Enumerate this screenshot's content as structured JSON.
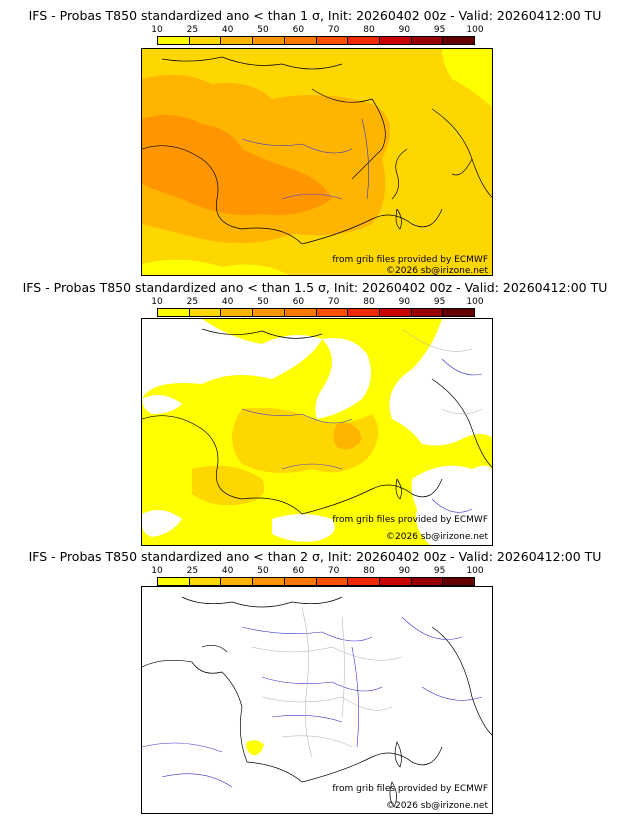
{
  "legend": {
    "ticks": [
      "10",
      "25",
      "40",
      "50",
      "60",
      "70",
      "80",
      "90",
      "95",
      "100"
    ],
    "colors": [
      "#ffff00",
      "#ffd700",
      "#ffb400",
      "#ff9600",
      "#ff7800",
      "#ff5000",
      "#f02800",
      "#c80000",
      "#960000",
      "#640000"
    ]
  },
  "panels": [
    {
      "title": "IFS - Probas T850  standardized ano < than 1 σ, Init: 20260402 00z - Valid: 20260412:00 TU",
      "source": "from grib files provided by ECMWF",
      "copyright": "©2026 sb@irizone.net",
      "fill": "high"
    },
    {
      "title": "IFS - Probas T850  standardized ano < than 1.5 σ, Init: 20260402 00z - Valid: 20260412:00 TU",
      "source": "from grib files provided by ECMWF",
      "copyright": "©2026 sb@irizone.net",
      "fill": "mid"
    },
    {
      "title": "IFS - Probas T850  standardized ano < than 2 σ, Init: 20260402 00z - Valid: 20260412:00 TU",
      "source": "from grib files provided by ECMWF",
      "copyright": "©2026 sb@irizone.net",
      "fill": "low"
    }
  ]
}
